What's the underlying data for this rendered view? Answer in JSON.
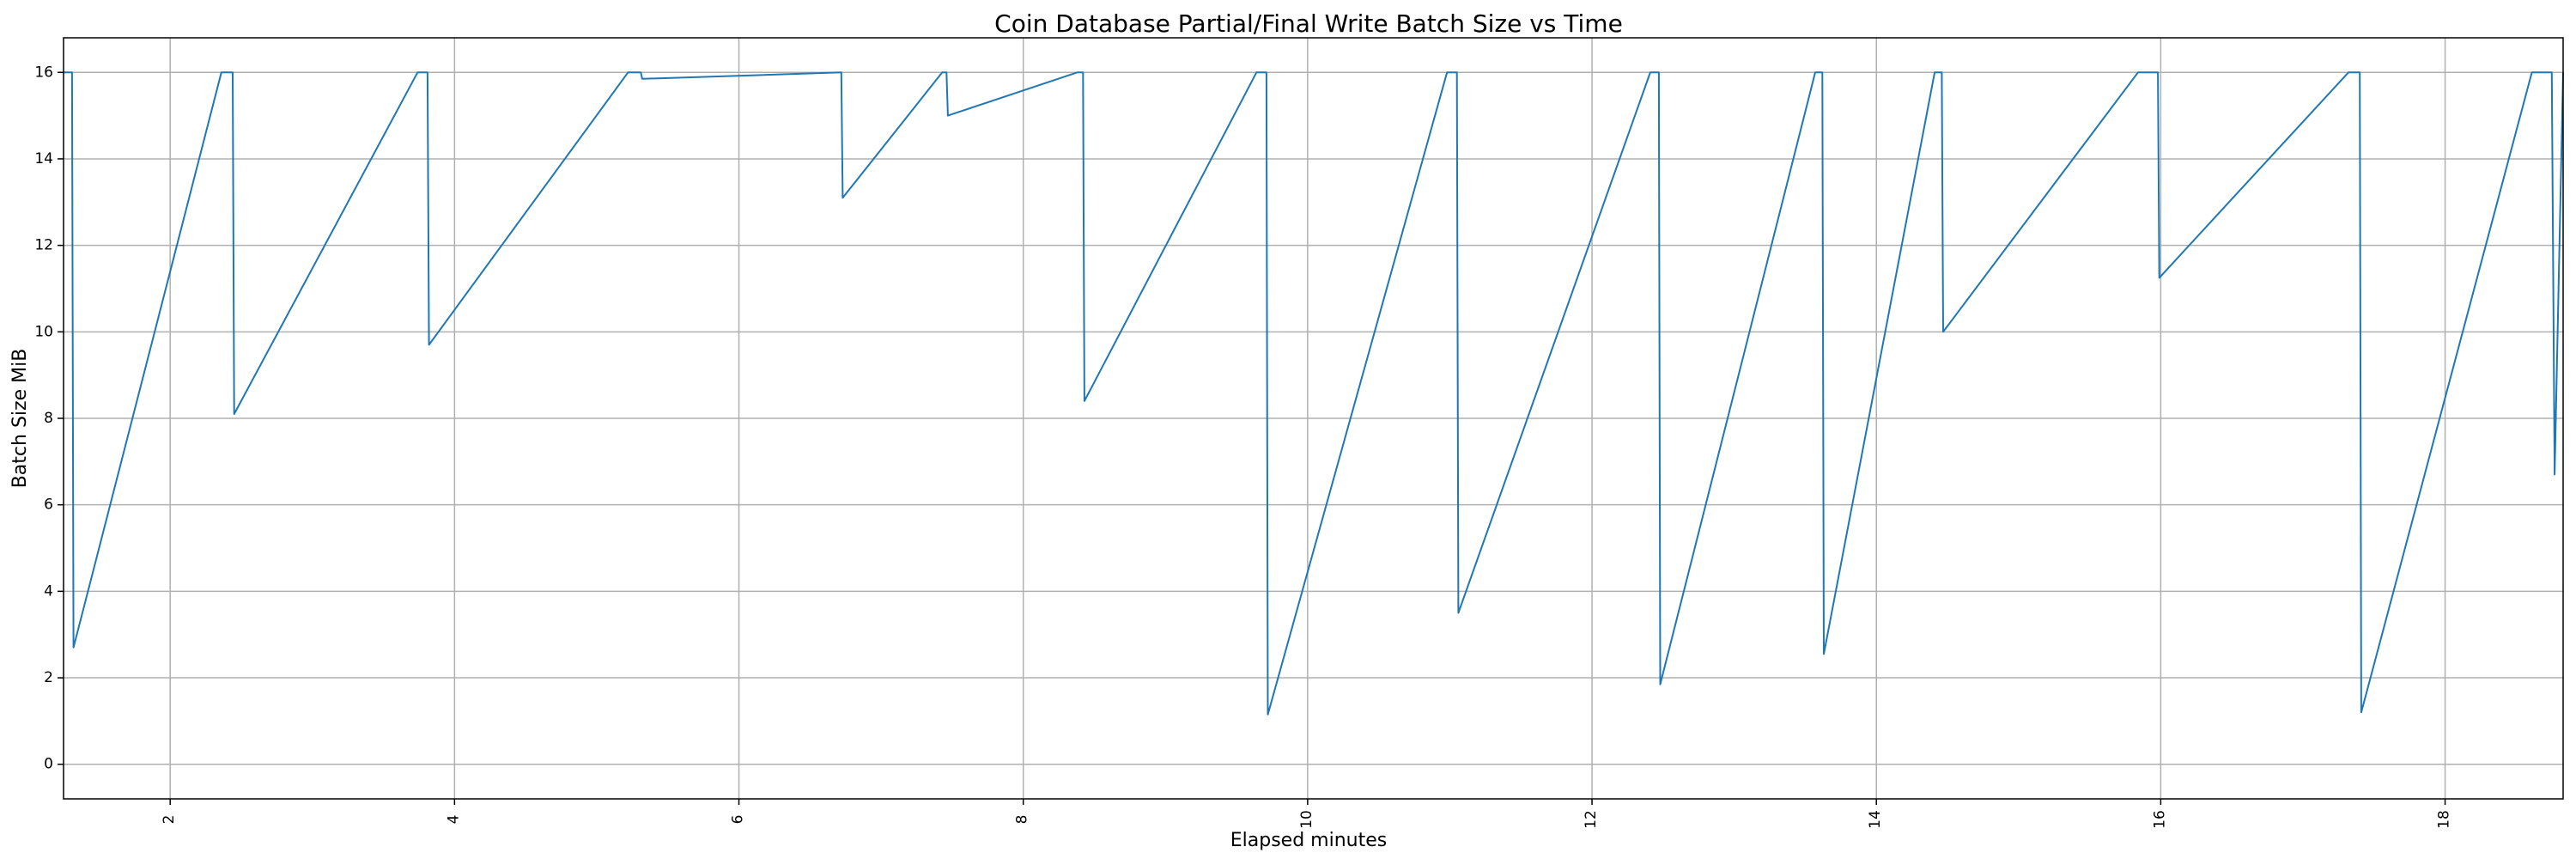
{
  "chart_data": {
    "type": "line",
    "title": "Coin Database Partial/Final Write Batch Size vs Time",
    "xlabel": "Elapsed minutes",
    "ylabel": "Batch Size MiB",
    "xlim": [
      1.25,
      18.83
    ],
    "ylim": [
      -0.8,
      16.8
    ],
    "xticks": [
      2,
      4,
      6,
      8,
      10,
      12,
      14,
      16,
      18
    ],
    "xtick_labels": [
      "2",
      "4",
      "6",
      "8",
      "10",
      "12",
      "14",
      "16",
      "18"
    ],
    "xtick_rotation": -90,
    "yticks": [
      0,
      2,
      4,
      6,
      8,
      10,
      12,
      14,
      16
    ],
    "ytick_labels": [
      "0",
      "2",
      "4",
      "6",
      "8",
      "10",
      "12",
      "14",
      "16"
    ],
    "grid": true,
    "color": "#1f77b4",
    "series": [
      {
        "x": [
          1.25,
          1.31,
          1.32,
          2.36,
          2.44,
          2.45,
          3.74,
          3.81,
          3.82,
          5.22,
          5.31,
          5.32,
          6.72,
          6.73,
          7.43,
          7.46,
          7.47,
          8.38,
          8.42,
          8.43,
          9.64,
          9.71,
          9.72,
          10.98,
          11.05,
          11.06,
          12.41,
          12.47,
          12.48,
          13.57,
          13.62,
          13.63,
          14.41,
          14.46,
          14.47,
          15.84,
          15.98,
          15.99,
          17.32,
          17.4,
          17.41,
          18.61,
          18.75,
          18.77,
          18.83
        ],
        "y": [
          16.0,
          16.0,
          2.7,
          16.0,
          16.0,
          8.1,
          16.0,
          16.0,
          9.7,
          16.0,
          16.0,
          15.85,
          16.0,
          13.1,
          16.0,
          16.0,
          15.0,
          16.0,
          16.0,
          8.4,
          16.0,
          16.0,
          1.15,
          16.0,
          16.0,
          3.5,
          16.0,
          16.0,
          1.85,
          16.0,
          16.0,
          2.55,
          16.0,
          16.0,
          10.0,
          16.0,
          16.0,
          11.25,
          16.0,
          16.0,
          1.2,
          16.0,
          16.0,
          6.7,
          16.0
        ]
      }
    ]
  }
}
